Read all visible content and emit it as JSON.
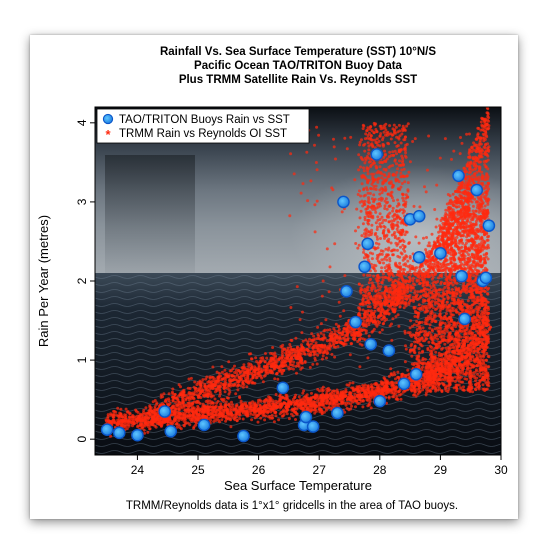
{
  "chart_data": {
    "type": "scatter",
    "title_lines": [
      "Rainfall Vs. Sea Surface Temperature (SST) 10°N/S",
      "Pacific Ocean TAO/TRITON Buoy Data",
      "Plus TRMM Satellite Rain Vs. Reynolds SST"
    ],
    "xlabel": "Sea Surface Temperature",
    "ylabel": "Rain Per Year (metres)",
    "caption": "TRMM/Reynolds data is 1°x1° gridcells in the area of TAO buoys.",
    "xlim": [
      23.3,
      30
    ],
    "ylim": [
      -0.2,
      4.2
    ],
    "xticks": [
      24,
      25,
      26,
      27,
      28,
      29,
      30
    ],
    "yticks": [
      0,
      1,
      2,
      3,
      4
    ],
    "legend_position": "top-left",
    "grid": false,
    "background": "photograph of rain squall over dark ocean",
    "series": [
      {
        "name": "TAO/TRITON Buoys Rain vs SST",
        "marker": "circle",
        "color": "#3aa8ff",
        "x": [
          23.5,
          23.7,
          24.0,
          24.45,
          24.55,
          25.1,
          25.75,
          26.4,
          26.75,
          26.78,
          26.9,
          27.3,
          27.4,
          27.45,
          27.6,
          27.75,
          27.8,
          27.85,
          27.95,
          28.0,
          28.15,
          28.4,
          28.5,
          28.6,
          28.65,
          28.65,
          29.0,
          29.3,
          29.35,
          29.4,
          29.6,
          29.7,
          29.75,
          29.8
        ],
        "y": [
          0.12,
          0.08,
          0.05,
          0.35,
          0.1,
          0.18,
          0.04,
          0.65,
          0.18,
          0.28,
          0.16,
          0.33,
          3.0,
          1.87,
          1.48,
          2.18,
          2.47,
          1.2,
          3.6,
          0.48,
          1.12,
          0.7,
          2.78,
          0.82,
          2.3,
          2.82,
          2.35,
          3.33,
          2.06,
          1.52,
          3.15,
          2.0,
          2.04,
          2.7
        ]
      },
      {
        "name": "TRMM Rain vs Reynolds OI SST",
        "marker": "dot",
        "color": "#ff2a0f"
      }
    ]
  }
}
